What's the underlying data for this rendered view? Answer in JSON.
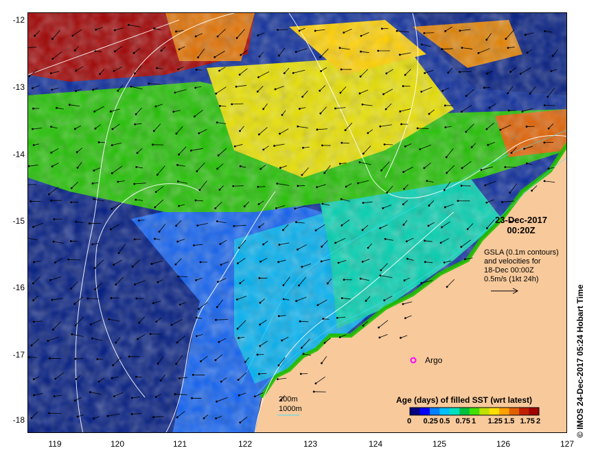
{
  "map": {
    "date": "23-Dec-2017",
    "time": "00:20Z",
    "gsla_line1": "GSLA (0.1m contours)",
    "gsla_line2": "and velocities for",
    "gsla_line3": "18-Dec 00:00Z",
    "scale_text": "0.5m/s (1kt 24h)",
    "float_label": "Argo",
    "depth1": "200m",
    "depth2": "1000m",
    "colorbar_title": "Age (days) of filled SST (wrt latest)",
    "colorbar_ticks": [
      "0",
      "0.25",
      "0.5",
      "0.75",
      "1",
      "1.25",
      "1.5",
      "1.75",
      "2"
    ],
    "colorbar_colors": [
      "#000080",
      "#0000ff",
      "#0080ff",
      "#00c0ff",
      "#00e0c0",
      "#00c040",
      "#40e000",
      "#c0e000",
      "#ffe000",
      "#ffa000",
      "#e06000",
      "#c02000",
      "#a00000"
    ],
    "stamp": "© IMOS 24-Dec-2017 05:24 Hobart Time",
    "x_ticks": [
      "119",
      "120",
      "121",
      "122",
      "123",
      "124",
      "125",
      "126",
      "127"
    ],
    "y_ticks": [
      "-12",
      "-13",
      "-14",
      "-15",
      "-16",
      "-17",
      "-18"
    ],
    "colors": {
      "land": "#f7c99b",
      "ocean_deep": "#000a78",
      "ocean_mid": "#0a50e6",
      "warm": "#a00000",
      "contour": "#ffffff",
      "depth_line": "#40e0ff"
    }
  }
}
